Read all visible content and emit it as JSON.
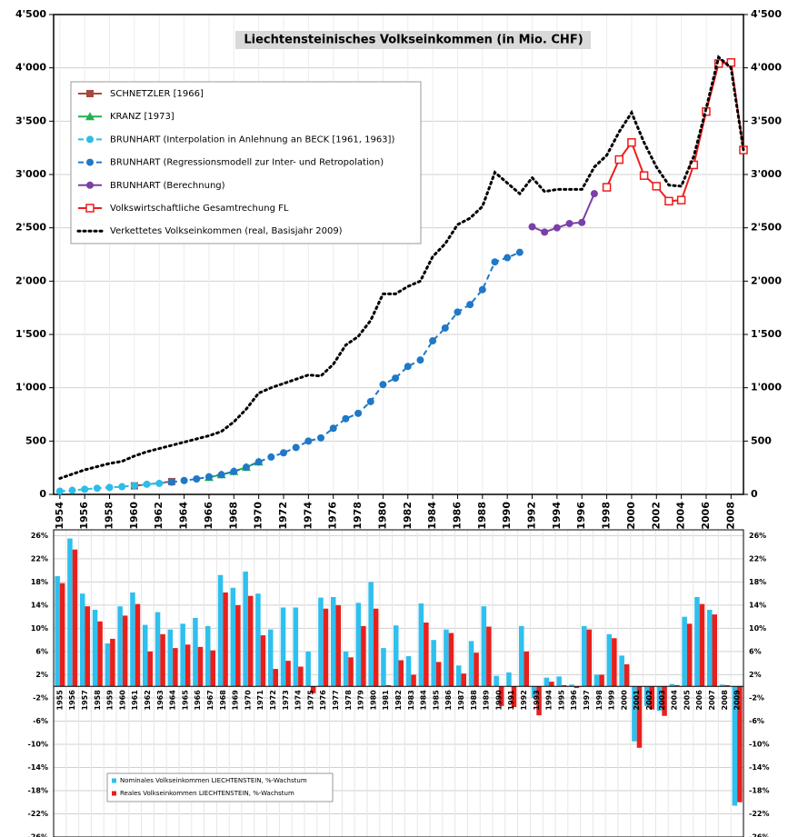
{
  "chart_data": [
    {
      "type": "line",
      "title": "Liechtensteinisches Volkseinkommen (in Mio. CHF)",
      "xlim": [
        1953.5,
        2009
      ],
      "xticks": [
        1954,
        1956,
        1958,
        1960,
        1962,
        1964,
        1966,
        1968,
        1970,
        1972,
        1974,
        1976,
        1978,
        1980,
        1982,
        1984,
        1986,
        1988,
        1990,
        1992,
        1994,
        1996,
        1998,
        2000,
        2002,
        2004,
        2006,
        2008
      ],
      "ylim": [
        0,
        4500
      ],
      "yticks": [
        0,
        500,
        {
          "value": 1000,
          "label": "1'000"
        },
        {
          "value": 1500,
          "label": "1'500"
        },
        {
          "value": 2000,
          "label": "2'000"
        },
        {
          "value": 2500,
          "label": "2'500"
        },
        {
          "value": 3000,
          "label": "3'000"
        },
        {
          "value": 3500,
          "label": "3'500"
        },
        {
          "value": 4000,
          "label": "4'000"
        },
        {
          "value": 4500,
          "label": "4'500"
        }
      ],
      "y2lim": [
        0,
        4500
      ],
      "y2ticks": [
        0,
        500,
        {
          "value": 1000,
          "label": "1'000"
        },
        {
          "value": 1500,
          "label": "1'500"
        },
        {
          "value": 2000,
          "label": "2'000"
        },
        {
          "value": 2500,
          "label": "2'500"
        },
        {
          "value": 3000,
          "label": "3'000"
        },
        {
          "value": 3500,
          "label": "3'500"
        },
        {
          "value": 4000,
          "label": "4'000"
        },
        {
          "value": 4500,
          "label": "4'500"
        }
      ],
      "grid": true,
      "legend": "upper left",
      "series": [
        {
          "name": "SCHNETZLER [1966]",
          "color": "#a8483c",
          "marker": "square",
          "dash": "solid",
          "x": [
            1960,
            1963
          ],
          "values": [
            80,
            120
          ]
        },
        {
          "name": "KRANZ [1973]",
          "color": "#22b04f",
          "marker": "triangle",
          "dash": "solid",
          "x": [
            1966,
            1967,
            1968,
            1969,
            1970
          ],
          "values": [
            160,
            185,
            215,
            255,
            305
          ]
        },
        {
          "name": "BRUNHART (Interpolation in Anlehnung an BECK [1961, 1963])",
          "color": "#2cbde8",
          "marker": "circle",
          "dash": "dashed",
          "x": [
            1954,
            1955,
            1956,
            1957,
            1958,
            1959,
            1960,
            1961,
            1962,
            1963
          ],
          "values": [
            30,
            38,
            48,
            58,
            65,
            72,
            82,
            95,
            103,
            115
          ]
        },
        {
          "name": "BRUNHART (Regressionsmodell zur Inter- und Retropolation)",
          "color": "#1f78c8",
          "marker": "circle",
          "dash": "dashed",
          "x": [
            1963,
            1964,
            1965,
            1966,
            1967,
            1968,
            1969,
            1970,
            1971,
            1972,
            1973,
            1974,
            1975,
            1976,
            1977,
            1978,
            1979,
            1980,
            1981,
            1982,
            1983,
            1984,
            1985,
            1986,
            1987,
            1988,
            1989,
            1990,
            1991
          ],
          "values": [
            115,
            130,
            145,
            165,
            185,
            215,
            255,
            305,
            350,
            390,
            440,
            500,
            530,
            620,
            710,
            760,
            870,
            1030,
            1090,
            1200,
            1260,
            1440,
            1560,
            1710,
            1780,
            1920,
            2180,
            2220,
            2270
          ]
        },
        {
          "name": "BRUNHART (Berechnung)",
          "color": "#7b3fa8",
          "marker": "circle",
          "dash": "solid",
          "x": [
            1992,
            1993,
            1994,
            1995,
            1996,
            1997
          ],
          "values": [
            2510,
            2460,
            2500,
            2540,
            2550,
            2820
          ]
        },
        {
          "name": "Volkswirtschaftliche Gesamtrechung FL",
          "color": "#ee1c1c",
          "marker": "hollow-square",
          "dash": "solid",
          "x": [
            1998,
            1999,
            2000,
            2001,
            2002,
            2003,
            2004,
            2005,
            2006,
            2007,
            2008,
            2009
          ],
          "values": [
            2880,
            3140,
            3300,
            2990,
            2890,
            2750,
            2760,
            3090,
            3590,
            4040,
            4050,
            3230
          ]
        },
        {
          "name": "Verkettetes Volkseinkommen (real, Basisjahr 2009)",
          "color": "#000000",
          "marker": "none",
          "dash": "dotted",
          "x": [
            1954,
            1955,
            1956,
            1957,
            1958,
            1959,
            1960,
            1961,
            1962,
            1963,
            1964,
            1965,
            1966,
            1967,
            1968,
            1969,
            1970,
            1971,
            1972,
            1973,
            1974,
            1975,
            1976,
            1977,
            1978,
            1979,
            1980,
            1981,
            1982,
            1983,
            1984,
            1985,
            1986,
            1987,
            1988,
            1989,
            1990,
            1991,
            1992,
            1993,
            1994,
            1995,
            1996,
            1997,
            1998,
            1999,
            2000,
            2001,
            2002,
            2003,
            2004,
            2005,
            2006,
            2007,
            2008,
            2009
          ],
          "values": [
            150,
            190,
            230,
            260,
            290,
            310,
            360,
            400,
            430,
            460,
            490,
            520,
            550,
            590,
            680,
            800,
            950,
            1000,
            1040,
            1080,
            1120,
            1110,
            1220,
            1400,
            1480,
            1630,
            1880,
            1880,
            1950,
            2000,
            2230,
            2350,
            2530,
            2590,
            2700,
            3020,
            2920,
            2820,
            2970,
            2840,
            2860,
            2860,
            2860,
            3070,
            3180,
            3400,
            3580,
            3300,
            3070,
            2900,
            2890,
            3170,
            3620,
            4100,
            4000,
            3230
          ]
        }
      ]
    },
    {
      "type": "bar",
      "categories": [
        1955,
        1956,
        1957,
        1958,
        1959,
        1960,
        1961,
        1962,
        1963,
        1964,
        1965,
        1966,
        1967,
        1968,
        1969,
        1970,
        1971,
        1972,
        1973,
        1974,
        1975,
        1976,
        1977,
        1978,
        1979,
        1980,
        1981,
        1982,
        1983,
        1984,
        1985,
        1986,
        1987,
        1988,
        1989,
        1990,
        1991,
        1992,
        1993,
        1994,
        1995,
        1996,
        1997,
        1998,
        1999,
        2000,
        2001,
        2002,
        2003,
        2004,
        2005,
        2006,
        2007,
        2008,
        2009
      ],
      "ylim": [
        -26,
        27
      ],
      "yticks": [
        {
          "value": 26,
          "label": "26%"
        },
        {
          "value": 22,
          "label": "22%"
        },
        {
          "value": 18,
          "label": "18%"
        },
        {
          "value": 14,
          "label": "14%"
        },
        {
          "value": 10,
          "label": "10%"
        },
        {
          "value": 6,
          "label": "6%"
        },
        {
          "value": 2,
          "label": "2%"
        },
        {
          "value": -2,
          "label": "-2%"
        },
        {
          "value": -6,
          "label": "-6%"
        },
        {
          "value": -10,
          "label": "-10%"
        },
        {
          "value": -14,
          "label": "-14%"
        },
        {
          "value": -18,
          "label": "-18%"
        },
        {
          "value": -22,
          "label": "-22%"
        },
        {
          "value": -26,
          "label": "-26%"
        }
      ],
      "y2lim": [
        -26,
        27
      ],
      "y2ticks": [
        {
          "value": 26,
          "label": "26%"
        },
        {
          "value": 22,
          "label": "22%"
        },
        {
          "value": 18,
          "label": "18%"
        },
        {
          "value": 14,
          "label": "14%"
        },
        {
          "value": 10,
          "label": "10%"
        },
        {
          "value": 6,
          "label": "6%"
        },
        {
          "value": 2,
          "label": "2%"
        },
        {
          "value": -2,
          "label": "-2%"
        },
        {
          "value": -6,
          "label": "-6%"
        },
        {
          "value": -10,
          "label": "-10%"
        },
        {
          "value": -14,
          "label": "-14%"
        },
        {
          "value": -18,
          "label": "-18%"
        },
        {
          "value": -22,
          "label": "-22%"
        },
        {
          "value": -26,
          "label": "-26%"
        }
      ],
      "grid": true,
      "legend": "lower left",
      "series": [
        {
          "name": "Nominales Volkseinkommen LIECHTENSTEIN, %-Wachstum",
          "color": "#2ec0ef",
          "values": [
            19,
            25.5,
            16,
            13.2,
            7.4,
            13.8,
            16.2,
            10.6,
            12.8,
            9.8,
            10.8,
            11.8,
            10.4,
            19.2,
            17,
            19.8,
            16,
            9.8,
            13.6,
            13.6,
            6,
            15.3,
            15.4,
            6,
            14.4,
            18,
            6.6,
            10.5,
            5.2,
            14.3,
            8,
            9.8,
            3.6,
            7.8,
            13.8,
            1.8,
            2.4,
            10.4,
            -2,
            1.5,
            1.7,
            0.3,
            10.4,
            2,
            9,
            5.3,
            -9.5,
            -3.4,
            -4.2,
            0.4,
            12,
            15.4,
            13.2,
            0.3,
            -20.6
          ]
        },
        {
          "name": "Reales Volkseinkommen LIECHTENSTEIN, %-Wachstum",
          "color": "#e8201c",
          "values": [
            17.8,
            23.6,
            13.8,
            11.2,
            8.2,
            12.2,
            14.2,
            6,
            9,
            6.6,
            7.2,
            6.8,
            6.2,
            16.2,
            14,
            15.6,
            8.8,
            3,
            4.4,
            3.4,
            -1.2,
            13.4,
            14,
            5,
            10.4,
            13.4,
            0.2,
            4.5,
            2,
            11,
            4.2,
            9.2,
            2.2,
            5.8,
            10.3,
            -3.4,
            -3.6,
            6,
            -5,
            0.8,
            0.2,
            -0.3,
            9.8,
            2,
            8.3,
            3.8,
            -10.6,
            -4,
            -5.1,
            0.2,
            10.8,
            14.2,
            12.4,
            0.2,
            -20
          ]
        }
      ]
    }
  ]
}
